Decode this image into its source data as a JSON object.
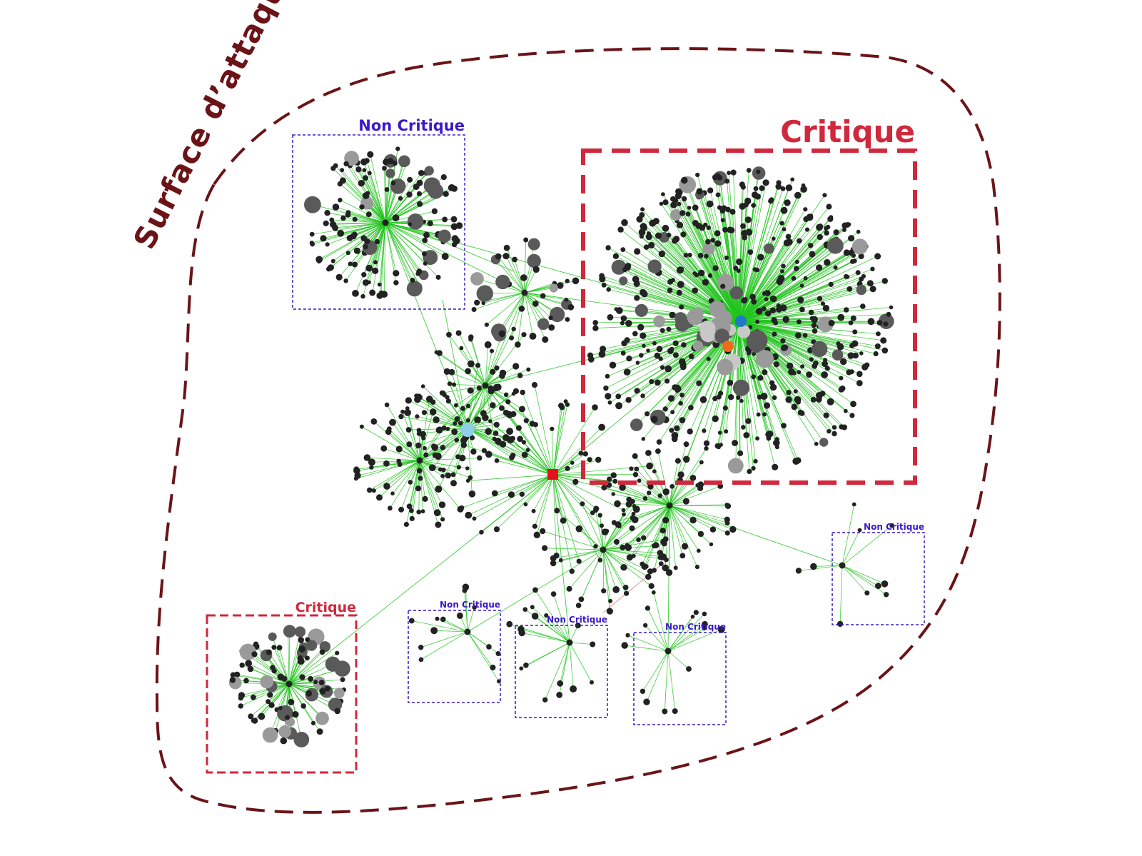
{
  "surface": {
    "label": "Surface d’attaque",
    "color": "#6b1418"
  },
  "colors": {
    "critique": "#d0283c",
    "non_critique": "#3a18c8",
    "edge": "#22c41e",
    "edge_alt": "#d08888",
    "node_dark": "#222222",
    "node_mid": "#5a5a5a",
    "node_light": "#9a9a9a",
    "node_pale": "#c8c8c8",
    "hub_blue": "#1f78c8",
    "hub_orange": "#f06a1e",
    "hub_cyan": "#8fd0e8",
    "hub_red": "#e8101c"
  },
  "zones": {
    "critique_main": "Critique",
    "critique_small": "Critique",
    "non_critique_top": "Non Critique",
    "non_critique_1": "Non Critique",
    "non_critique_2": "Non Critique",
    "non_critique_3": "Non Critique",
    "non_critique_4": "Non Critique"
  }
}
